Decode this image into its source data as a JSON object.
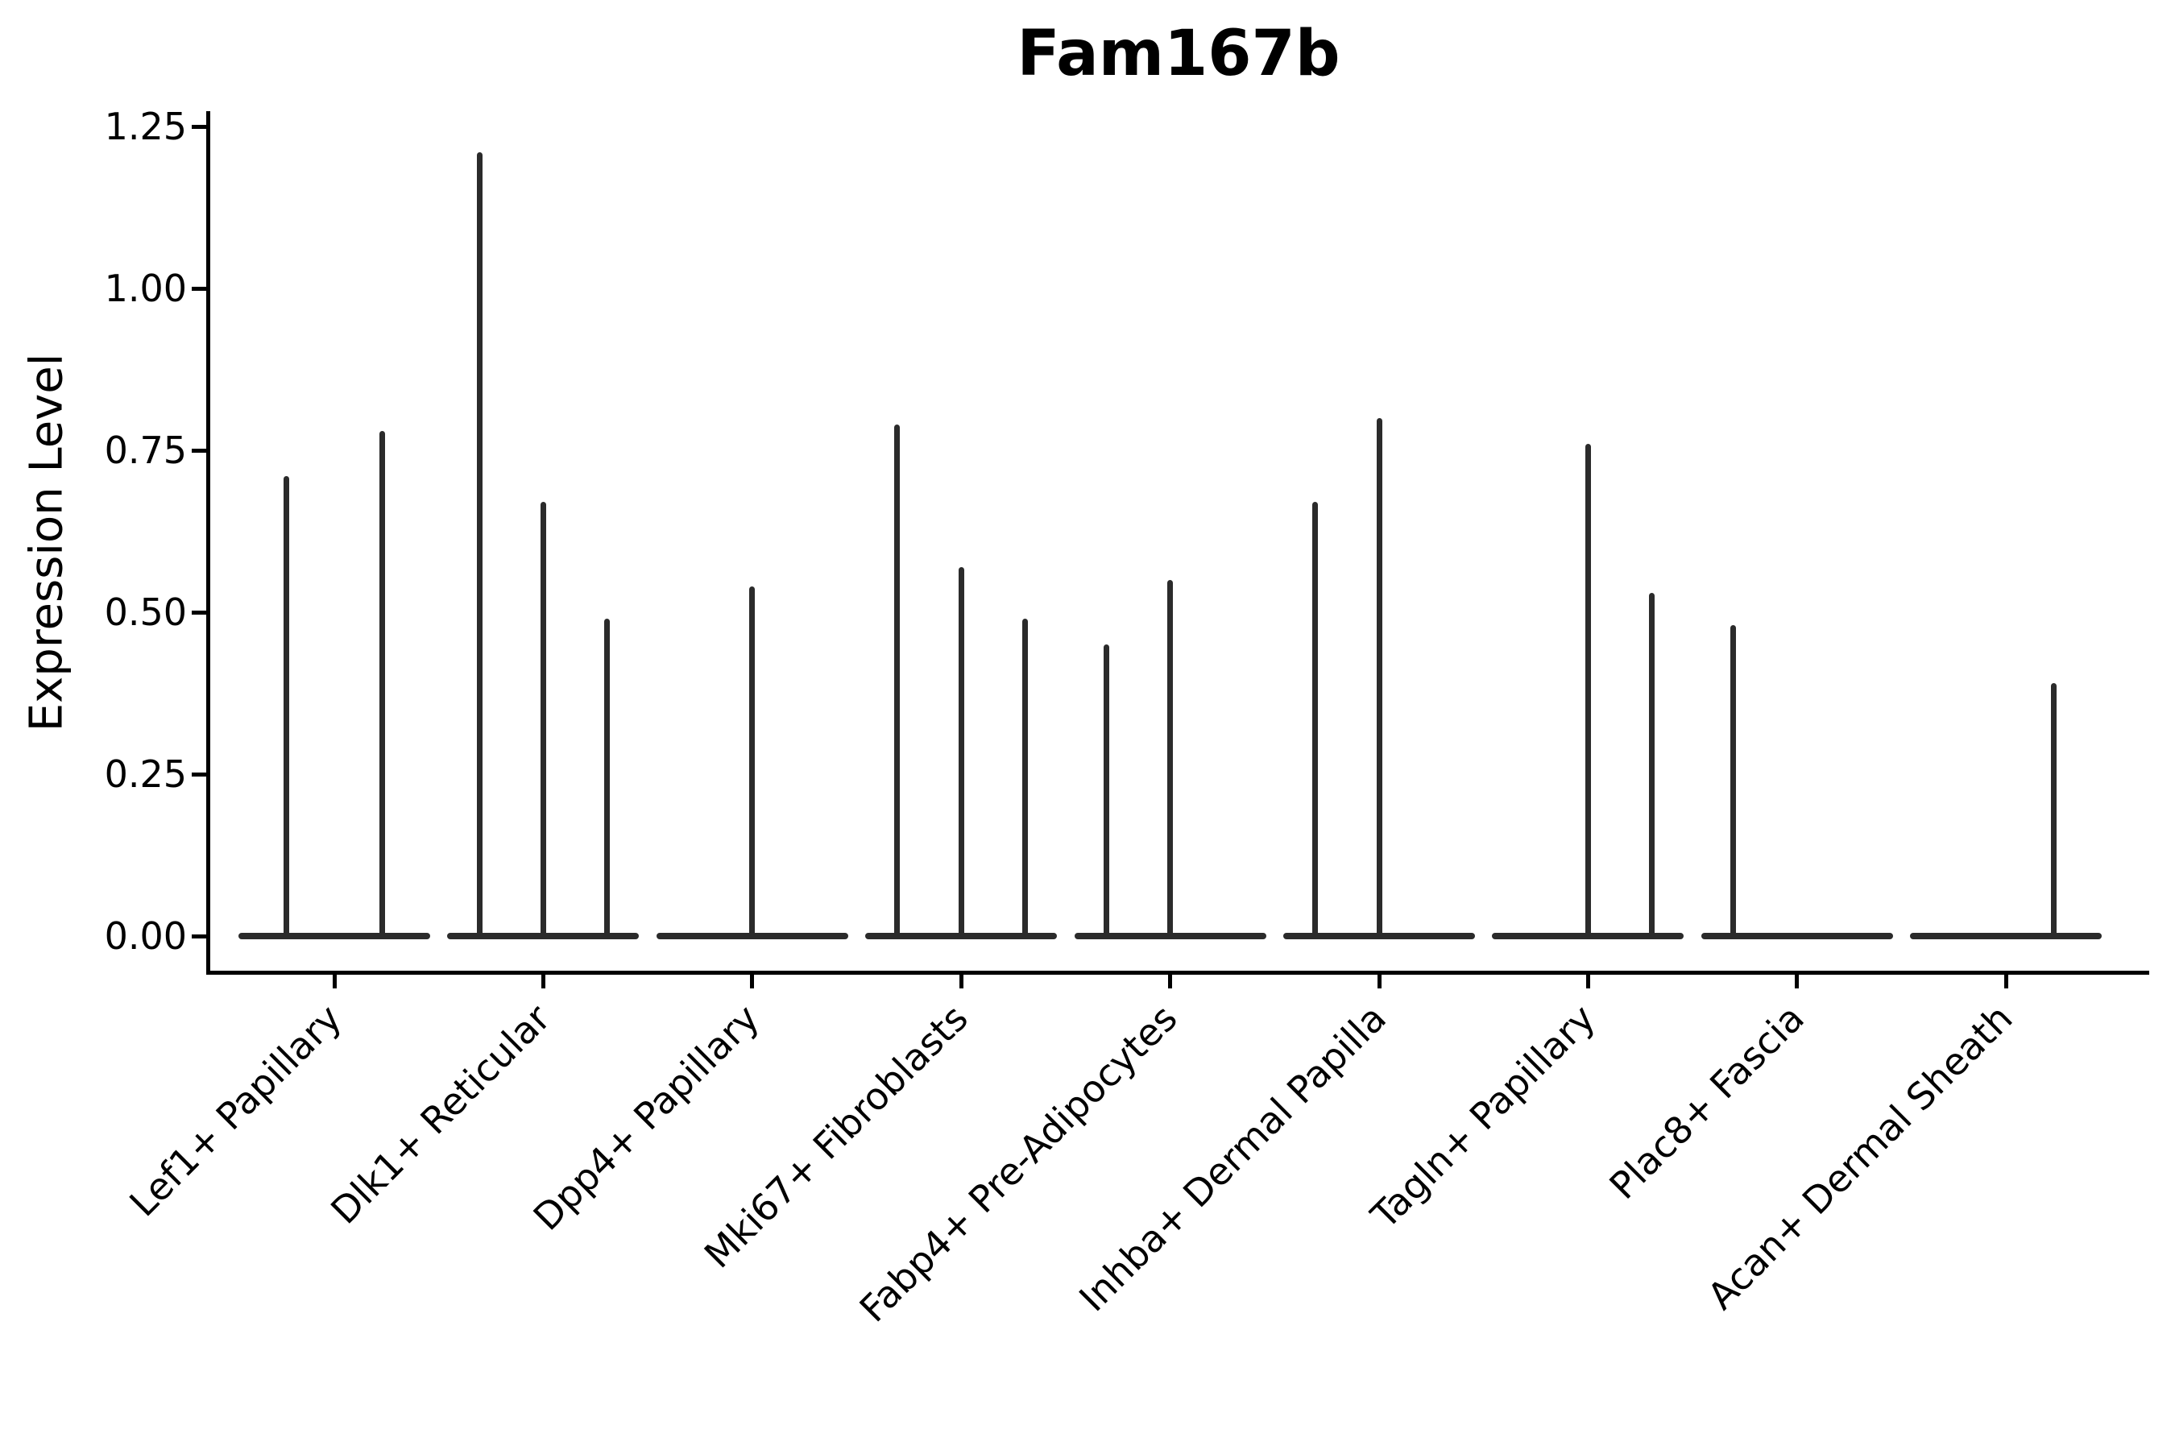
{
  "title": "Fam167b",
  "y_axis": {
    "label": "Expression Level",
    "tick_labels": [
      "1.25",
      "1.00",
      "0.75",
      "0.50",
      "0.25",
      "0.00"
    ]
  },
  "colors": {
    "background": "#ffffff",
    "violin_stroke": "#2b2b2b",
    "spine": "#000000",
    "text": "#000000"
  },
  "chart_data": {
    "type": "violin",
    "title": "Fam167b",
    "xlabel": "",
    "ylabel": "Expression Level",
    "ylim": [
      -0.06,
      1.27
    ],
    "yticks": [
      0.0,
      0.25,
      0.5,
      0.75,
      1.0,
      1.25
    ],
    "grid": false,
    "legend": "none",
    "description": "Narrow spike-shaped violins with flat bases at 0; several violins per category, some slots flat (all-zero).",
    "categories": [
      {
        "label": "Lef1+ Papillary",
        "n_slots": 2,
        "spikes": [
          {
            "slot": 0,
            "value": 0.71
          },
          {
            "slot": 1,
            "value": 0.78
          }
        ]
      },
      {
        "label": "Dlk1+ Reticular",
        "n_slots": 3,
        "spikes": [
          {
            "slot": 0,
            "value": 1.21
          },
          {
            "slot": 1,
            "value": 0.67
          },
          {
            "slot": 2,
            "value": 0.49
          }
        ]
      },
      {
        "label": "Dpp4+ Papillary",
        "n_slots": 1,
        "spikes": [
          {
            "slot": 0,
            "value": 0.54
          }
        ]
      },
      {
        "label": "Mki67+ Fibroblasts",
        "n_slots": 3,
        "spikes": [
          {
            "slot": 0,
            "value": 0.79
          },
          {
            "slot": 1,
            "value": 0.57
          },
          {
            "slot": 2,
            "value": 0.49
          }
        ]
      },
      {
        "label": "Fabp4+ Pre-Adipocytes",
        "n_slots": 3,
        "spikes": [
          {
            "slot": 0,
            "value": 0.45
          },
          {
            "slot": 1,
            "value": 0.55
          }
        ]
      },
      {
        "label": "Inhba+ Dermal Papilla",
        "n_slots": 3,
        "spikes": [
          {
            "slot": 0,
            "value": 0.67
          },
          {
            "slot": 1,
            "value": 0.8
          }
        ]
      },
      {
        "label": "Tagln+ Papillary",
        "n_slots": 3,
        "spikes": [
          {
            "slot": 1,
            "value": 0.76
          },
          {
            "slot": 2,
            "value": 0.53
          }
        ]
      },
      {
        "label": "Plac8+ Fascia",
        "n_slots": 3,
        "spikes": [
          {
            "slot": 0,
            "value": 0.48
          }
        ]
      },
      {
        "label": "Acan+ Dermal Sheath",
        "n_slots": 2,
        "spikes": [
          {
            "slot": 1,
            "value": 0.39
          }
        ]
      }
    ]
  }
}
